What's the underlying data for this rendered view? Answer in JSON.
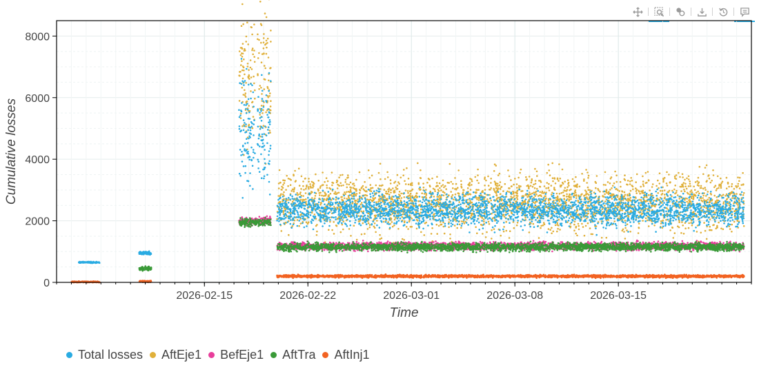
{
  "toolbar": {
    "tools": [
      {
        "name": "pan-tool",
        "icon": "move-icon",
        "active": false
      },
      {
        "name": "box-zoom-tool",
        "icon": "box-zoom-icon",
        "active": true
      },
      {
        "name": "hover-tool",
        "icon": "hover-icon",
        "active": false
      },
      {
        "name": "save-tool",
        "icon": "download-icon",
        "active": false
      },
      {
        "name": "reset-tool",
        "icon": "reset-icon",
        "active": false
      },
      {
        "name": "help-tool",
        "icon": "help-icon",
        "active": true
      }
    ]
  },
  "chart_data": {
    "type": "scatter",
    "title": "",
    "xlabel": "Time",
    "ylabel": "Cumulative losses",
    "x_range": [
      "2026-02-05",
      "2026-03-24"
    ],
    "ylim": [
      0,
      8500
    ],
    "x_ticks": [
      "2026-02-15",
      "2026-02-22",
      "2026-03-01",
      "2026-03-08",
      "2026-03-15"
    ],
    "y_ticks": [
      0,
      2000,
      4000,
      6000,
      8000
    ],
    "grid": true,
    "legend_position": "bottom",
    "series": [
      {
        "name": "Total losses",
        "color": "#29abe2",
        "segments": [
          {
            "start": "2026-02-06 12:00",
            "end": "2026-02-07 22:00",
            "level": 650,
            "spread": 10
          },
          {
            "start": "2026-02-10 14:00",
            "end": "2026-02-11 10:00",
            "level": 950,
            "spread": 25
          },
          {
            "start": "2026-02-17 08:00",
            "end": "2026-02-18 10:00",
            "level": 4800,
            "spread": 900
          },
          {
            "start": "2026-02-18 14:00",
            "end": "2026-02-19 12:00",
            "level": 4900,
            "spread": 900
          },
          {
            "start": "2026-02-19 22:00",
            "end": "2026-03-23 12:00",
            "level": 2350,
            "spread": 250
          }
        ]
      },
      {
        "name": "AftEje1",
        "color": "#e0b03a",
        "segments": [
          {
            "start": "2026-02-17 08:00",
            "end": "2026-02-18 10:00",
            "level": 6500,
            "spread": 1200
          },
          {
            "start": "2026-02-18 14:00",
            "end": "2026-02-19 12:00",
            "level": 6500,
            "spread": 1200
          },
          {
            "start": "2026-02-19 22:00",
            "end": "2026-03-23 12:00",
            "level": 2600,
            "spread": 450
          }
        ]
      },
      {
        "name": "BefEje1",
        "color": "#e83e9b",
        "segments": [
          {
            "start": "2026-02-17 08:00",
            "end": "2026-02-19 12:00",
            "level": 2000,
            "spread": 60
          },
          {
            "start": "2026-02-19 22:00",
            "end": "2026-03-23 12:00",
            "level": 1180,
            "spread": 60
          }
        ]
      },
      {
        "name": "AftTra",
        "color": "#3a9a38",
        "segments": [
          {
            "start": "2026-02-10 14:00",
            "end": "2026-02-11 10:00",
            "level": 450,
            "spread": 30
          },
          {
            "start": "2026-02-17 08:00",
            "end": "2026-02-19 12:00",
            "level": 1950,
            "spread": 60
          },
          {
            "start": "2026-02-19 22:00",
            "end": "2026-03-23 12:00",
            "level": 1150,
            "spread": 60
          }
        ]
      },
      {
        "name": "AftInj1",
        "color": "#f26322",
        "segments": [
          {
            "start": "2026-02-06 00:00",
            "end": "2026-02-07 22:00",
            "level": 15,
            "spread": 10
          },
          {
            "start": "2026-02-10 14:00",
            "end": "2026-02-11 10:00",
            "level": 30,
            "spread": 15
          },
          {
            "start": "2026-02-19 22:00",
            "end": "2026-03-23 12:00",
            "level": 200,
            "spread": 20
          }
        ]
      }
    ]
  }
}
